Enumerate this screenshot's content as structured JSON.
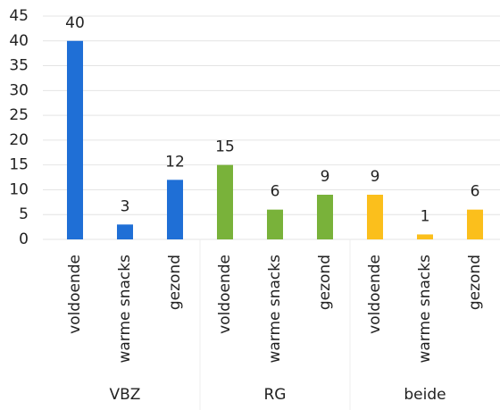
{
  "chart_data": {
    "type": "bar",
    "groups": [
      {
        "name": "VBZ",
        "color": "#1f6fd6",
        "categories": [
          "voldoende",
          "warme snacks",
          "gezond"
        ],
        "values": [
          40,
          3,
          12
        ]
      },
      {
        "name": "RG",
        "color": "#79b23a",
        "categories": [
          "voldoende",
          "warme snacks",
          "gezond"
        ],
        "values": [
          15,
          6,
          9
        ]
      },
      {
        "name": "beide",
        "color": "#fbbf1c",
        "categories": [
          "voldoende",
          "warme snacks",
          "gezond"
        ],
        "values": [
          9,
          1,
          6
        ]
      }
    ],
    "ylim": [
      0,
      45
    ],
    "yticks": [
      0,
      5,
      10,
      15,
      20,
      25,
      30,
      35,
      40,
      45
    ],
    "grid": true
  }
}
